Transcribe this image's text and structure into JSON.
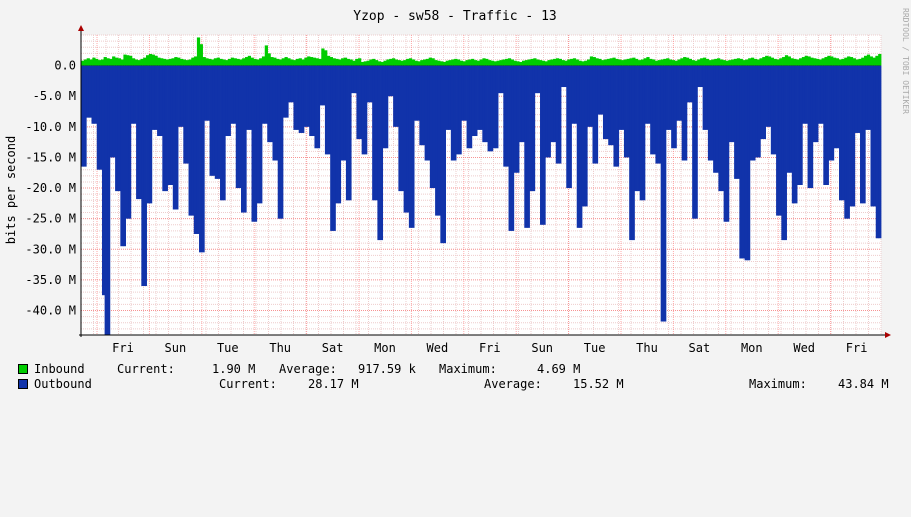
{
  "chart_data": {
    "type": "area",
    "title": "Yzop - sw58 - Traffic - 13",
    "ylabel": "bits per second",
    "watermark": "RRDTOOL / TOBI OETIKER",
    "ylim": [
      -44000000,
      5000000
    ],
    "ytick_values": [
      0,
      -5000000,
      -10000000,
      -15000000,
      -20000000,
      -25000000,
      -30000000,
      -35000000,
      -40000000
    ],
    "ytick_labels": [
      "0.0",
      "-5.0 M",
      "-10.0 M",
      "-15.0 M",
      "-20.0 M",
      "-25.0 M",
      "-30.0 M",
      "-35.0 M",
      "-40.0 M"
    ],
    "xtick_labels": [
      "Fri",
      "Sun",
      "Tue",
      "Thu",
      "Sat",
      "Mon",
      "Wed",
      "Fri",
      "Sun",
      "Tue",
      "Thu",
      "Sat",
      "Mon",
      "Wed",
      "Fri"
    ],
    "series": [
      {
        "name": "Inbound",
        "color": "#00cc00",
        "values": [
          0.8,
          1.0,
          1.2,
          1.0,
          1.3,
          1.1,
          0.9,
          1.0,
          1.4,
          1.2,
          1.1,
          1.5,
          1.3,
          1.2,
          1.0,
          1.8,
          1.7,
          1.6,
          1.2,
          1.0,
          0.9,
          1.1,
          1.3,
          1.7,
          1.9,
          1.8,
          1.6,
          1.3,
          1.2,
          1.1,
          1.0,
          1.1,
          1.2,
          1.4,
          1.3,
          1.1,
          1.0,
          0.9,
          1.0,
          1.3,
          1.5,
          4.6,
          3.5,
          1.4,
          1.2,
          1.1,
          1.0,
          1.2,
          1.3,
          1.1,
          1.0,
          0.9,
          1.1,
          1.3,
          1.2,
          1.1,
          1.0,
          1.2,
          1.4,
          1.6,
          1.3,
          1.1,
          1.0,
          1.2,
          1.5,
          3.3,
          2.0,
          1.4,
          1.3,
          1.1,
          1.0,
          1.2,
          1.4,
          1.2,
          1.0,
          0.9,
          1.1,
          1.2,
          1.0,
          1.3,
          1.5,
          1.4,
          1.3,
          1.2,
          1.1,
          2.8,
          2.5,
          1.6,
          1.4,
          1.2,
          1.1,
          1.0,
          1.2,
          1.3,
          1.1,
          1.0,
          0.8,
          1.1,
          1.2,
          0.6,
          0.7,
          0.8,
          1.0,
          1.1,
          0.9,
          0.7,
          0.6,
          0.8,
          1.0,
          1.1,
          1.2,
          1.0,
          0.9,
          0.8,
          0.9,
          1.1,
          1.2,
          1.0,
          0.8,
          0.7,
          0.9,
          1.0,
          1.1,
          1.3,
          1.2,
          0.9,
          0.8,
          0.7,
          0.6,
          0.8,
          0.9,
          1.0,
          1.1,
          1.0,
          0.8,
          0.7,
          0.9,
          1.0,
          1.1,
          0.9,
          0.8,
          1.0,
          1.2,
          1.1,
          0.9,
          0.8,
          0.7,
          0.8,
          0.9,
          1.0,
          1.1,
          1.2,
          1.0,
          0.8,
          0.7,
          0.6,
          0.8,
          0.9,
          1.0,
          1.1,
          1.2,
          1.0,
          0.9,
          0.8,
          0.7,
          0.9,
          1.0,
          1.1,
          1.2,
          1.1,
          0.9,
          0.8,
          1.0,
          1.1,
          1.2,
          1.0,
          0.8,
          0.7,
          0.8,
          1.0,
          1.5,
          1.4,
          1.2,
          1.1,
          0.9,
          1.0,
          1.1,
          1.2,
          1.3,
          1.1,
          1.0,
          0.9,
          1.0,
          1.1,
          1.2,
          1.3,
          1.1,
          0.9,
          1.0,
          1.2,
          1.4,
          1.1,
          1.0,
          0.8,
          0.9,
          1.0,
          1.1,
          1.2,
          1.0,
          0.9,
          0.8,
          1.0,
          1.2,
          1.4,
          1.3,
          1.1,
          0.9,
          0.8,
          1.0,
          1.2,
          1.3,
          1.1,
          0.9,
          1.0,
          1.1,
          1.2,
          1.0,
          0.9,
          0.8,
          0.9,
          1.0,
          1.1,
          1.2,
          1.1,
          0.9,
          1.0,
          1.2,
          1.3,
          1.1,
          1.0,
          1.2,
          1.4,
          1.6,
          1.5,
          1.3,
          1.1,
          1.0,
          1.2,
          1.4,
          1.7,
          1.5,
          1.2,
          1.1,
          1.0,
          1.2,
          1.4,
          1.6,
          1.5,
          1.3,
          1.2,
          1.1,
          1.0,
          1.2,
          1.4,
          1.6,
          1.5,
          1.3,
          1.2,
          1.0,
          1.1,
          1.3,
          1.5,
          1.4,
          1.2,
          1.0,
          1.1,
          1.3,
          1.6,
          1.8,
          1.5,
          1.3,
          1.6,
          1.9
        ]
      },
      {
        "name": "Outbound",
        "color": "#1133aa",
        "values": [
          -16.5,
          -16.5,
          -8.5,
          -8.5,
          -9.5,
          -9.5,
          -17.0,
          -17.0,
          -37.5,
          -44.5,
          -44.5,
          -15.0,
          -15.0,
          -20.5,
          -20.5,
          -29.5,
          -29.5,
          -25.0,
          -25.0,
          -9.5,
          -9.5,
          -21.8,
          -21.8,
          -36.0,
          -36.0,
          -22.5,
          -22.5,
          -10.5,
          -10.5,
          -11.5,
          -11.5,
          -20.5,
          -20.5,
          -19.5,
          -19.5,
          -23.5,
          -23.5,
          -10.0,
          -10.0,
          -16.0,
          -16.0,
          -24.5,
          -24.5,
          -27.5,
          -27.5,
          -30.5,
          -30.5,
          -9.0,
          -9.0,
          -18.0,
          -18.0,
          -18.5,
          -18.5,
          -22.0,
          -22.0,
          -11.5,
          -11.5,
          -9.5,
          -9.5,
          -20.0,
          -20.0,
          -24.0,
          -24.0,
          -10.5,
          -10.5,
          -25.5,
          -25.5,
          -22.5,
          -22.5,
          -9.5,
          -9.5,
          -12.5,
          -12.5,
          -15.5,
          -15.5,
          -25.0,
          -25.0,
          -8.5,
          -8.5,
          -6.0,
          -6.0,
          -10.5,
          -10.5,
          -11.0,
          -11.0,
          -10.0,
          -10.0,
          -11.5,
          -11.5,
          -13.5,
          -13.5,
          -6.5,
          -6.5,
          -14.5,
          -14.5,
          -27.0,
          -27.0,
          -22.5,
          -22.5,
          -15.5,
          -15.5,
          -22.0,
          -22.0,
          -4.5,
          -4.5,
          -12.0,
          -12.0,
          -14.5,
          -14.5,
          -6.0,
          -6.0,
          -22.0,
          -22.0,
          -28.5,
          -28.5,
          -13.5,
          -13.5,
          -5.0,
          -5.0,
          -10.0,
          -10.0,
          -20.5,
          -20.5,
          -24.0,
          -24.0,
          -26.5,
          -26.5,
          -9.0,
          -9.0,
          -13.0,
          -13.0,
          -15.5,
          -15.5,
          -20.0,
          -20.0,
          -24.5,
          -24.5,
          -29.0,
          -29.0,
          -10.5,
          -10.5,
          -15.5,
          -15.5,
          -14.5,
          -14.5,
          -9.0,
          -9.0,
          -13.5,
          -13.5,
          -11.5,
          -11.5,
          -10.5,
          -10.5,
          -12.5,
          -12.5,
          -14.0,
          -14.0,
          -13.5,
          -13.5,
          -4.5,
          -4.5,
          -16.5,
          -16.5,
          -27.0,
          -27.0,
          -17.5,
          -17.5,
          -12.5,
          -12.5,
          -26.5,
          -26.5,
          -20.5,
          -20.5,
          -4.5,
          -4.5,
          -26.0,
          -26.0,
          -15.0,
          -15.0,
          -12.5,
          -12.5,
          -16.0,
          -16.0,
          -3.5,
          -3.5,
          -20.0,
          -20.0,
          -9.5,
          -9.5,
          -26.5,
          -26.5,
          -23.0,
          -23.0,
          -10.0,
          -10.0,
          -16.0,
          -16.0,
          -8.0,
          -8.0,
          -12.0,
          -12.0,
          -13.0,
          -13.0,
          -16.5,
          -16.5,
          -10.5,
          -10.5,
          -15.0,
          -15.0,
          -28.5,
          -28.5,
          -20.5,
          -20.5,
          -22.0,
          -22.0,
          -9.5,
          -9.5,
          -14.5,
          -14.5,
          -16.0,
          -16.0,
          -41.8,
          -41.8,
          -10.5,
          -10.5,
          -13.5,
          -13.5,
          -9.0,
          -9.0,
          -15.5,
          -15.5,
          -6.0,
          -6.0,
          -25.0,
          -25.0,
          -3.5,
          -3.5,
          -10.5,
          -10.5,
          -15.5,
          -15.5,
          -17.5,
          -17.5,
          -20.5,
          -20.5,
          -25.5,
          -25.5,
          -12.5,
          -12.5,
          -18.5,
          -18.5,
          -31.5,
          -31.5,
          -31.8,
          -31.8,
          -15.5,
          -15.5,
          -15.0,
          -15.0,
          -12.0,
          -12.0,
          -10.0,
          -10.0,
          -14.5,
          -14.5,
          -24.5,
          -24.5,
          -28.5,
          -28.5,
          -17.5,
          -17.5,
          -22.5,
          -22.5,
          -19.5,
          -19.5,
          -9.5,
          -9.5,
          -20.0,
          -20.0,
          -12.5,
          -12.5,
          -9.5,
          -9.5,
          -19.5,
          -19.5,
          -15.5,
          -15.5,
          -13.5,
          -13.5,
          -22.0,
          -22.0,
          -25.0,
          -25.0,
          -23.0,
          -23.0,
          -11.0,
          -11.0,
          -22.5,
          -22.5,
          -10.5,
          -10.5,
          -23.0,
          -23.0,
          -28.2,
          -28.2
        ]
      }
    ],
    "value_unit": "M",
    "legend": [
      {
        "name": "Inbound",
        "current_label": "Current:",
        "current": "1.90 M",
        "average_label": "Average:",
        "average": "917.59 k",
        "maximum_label": "Maximum:",
        "maximum": "4.69 M"
      },
      {
        "name": "Outbound",
        "current_label": "Current:",
        "current": "28.17 M",
        "average_label": "Average:",
        "average": "15.52 M",
        "maximum_label": "Maximum:",
        "maximum": "43.84 M"
      }
    ],
    "grid": true,
    "legend_placement": "bottom"
  }
}
